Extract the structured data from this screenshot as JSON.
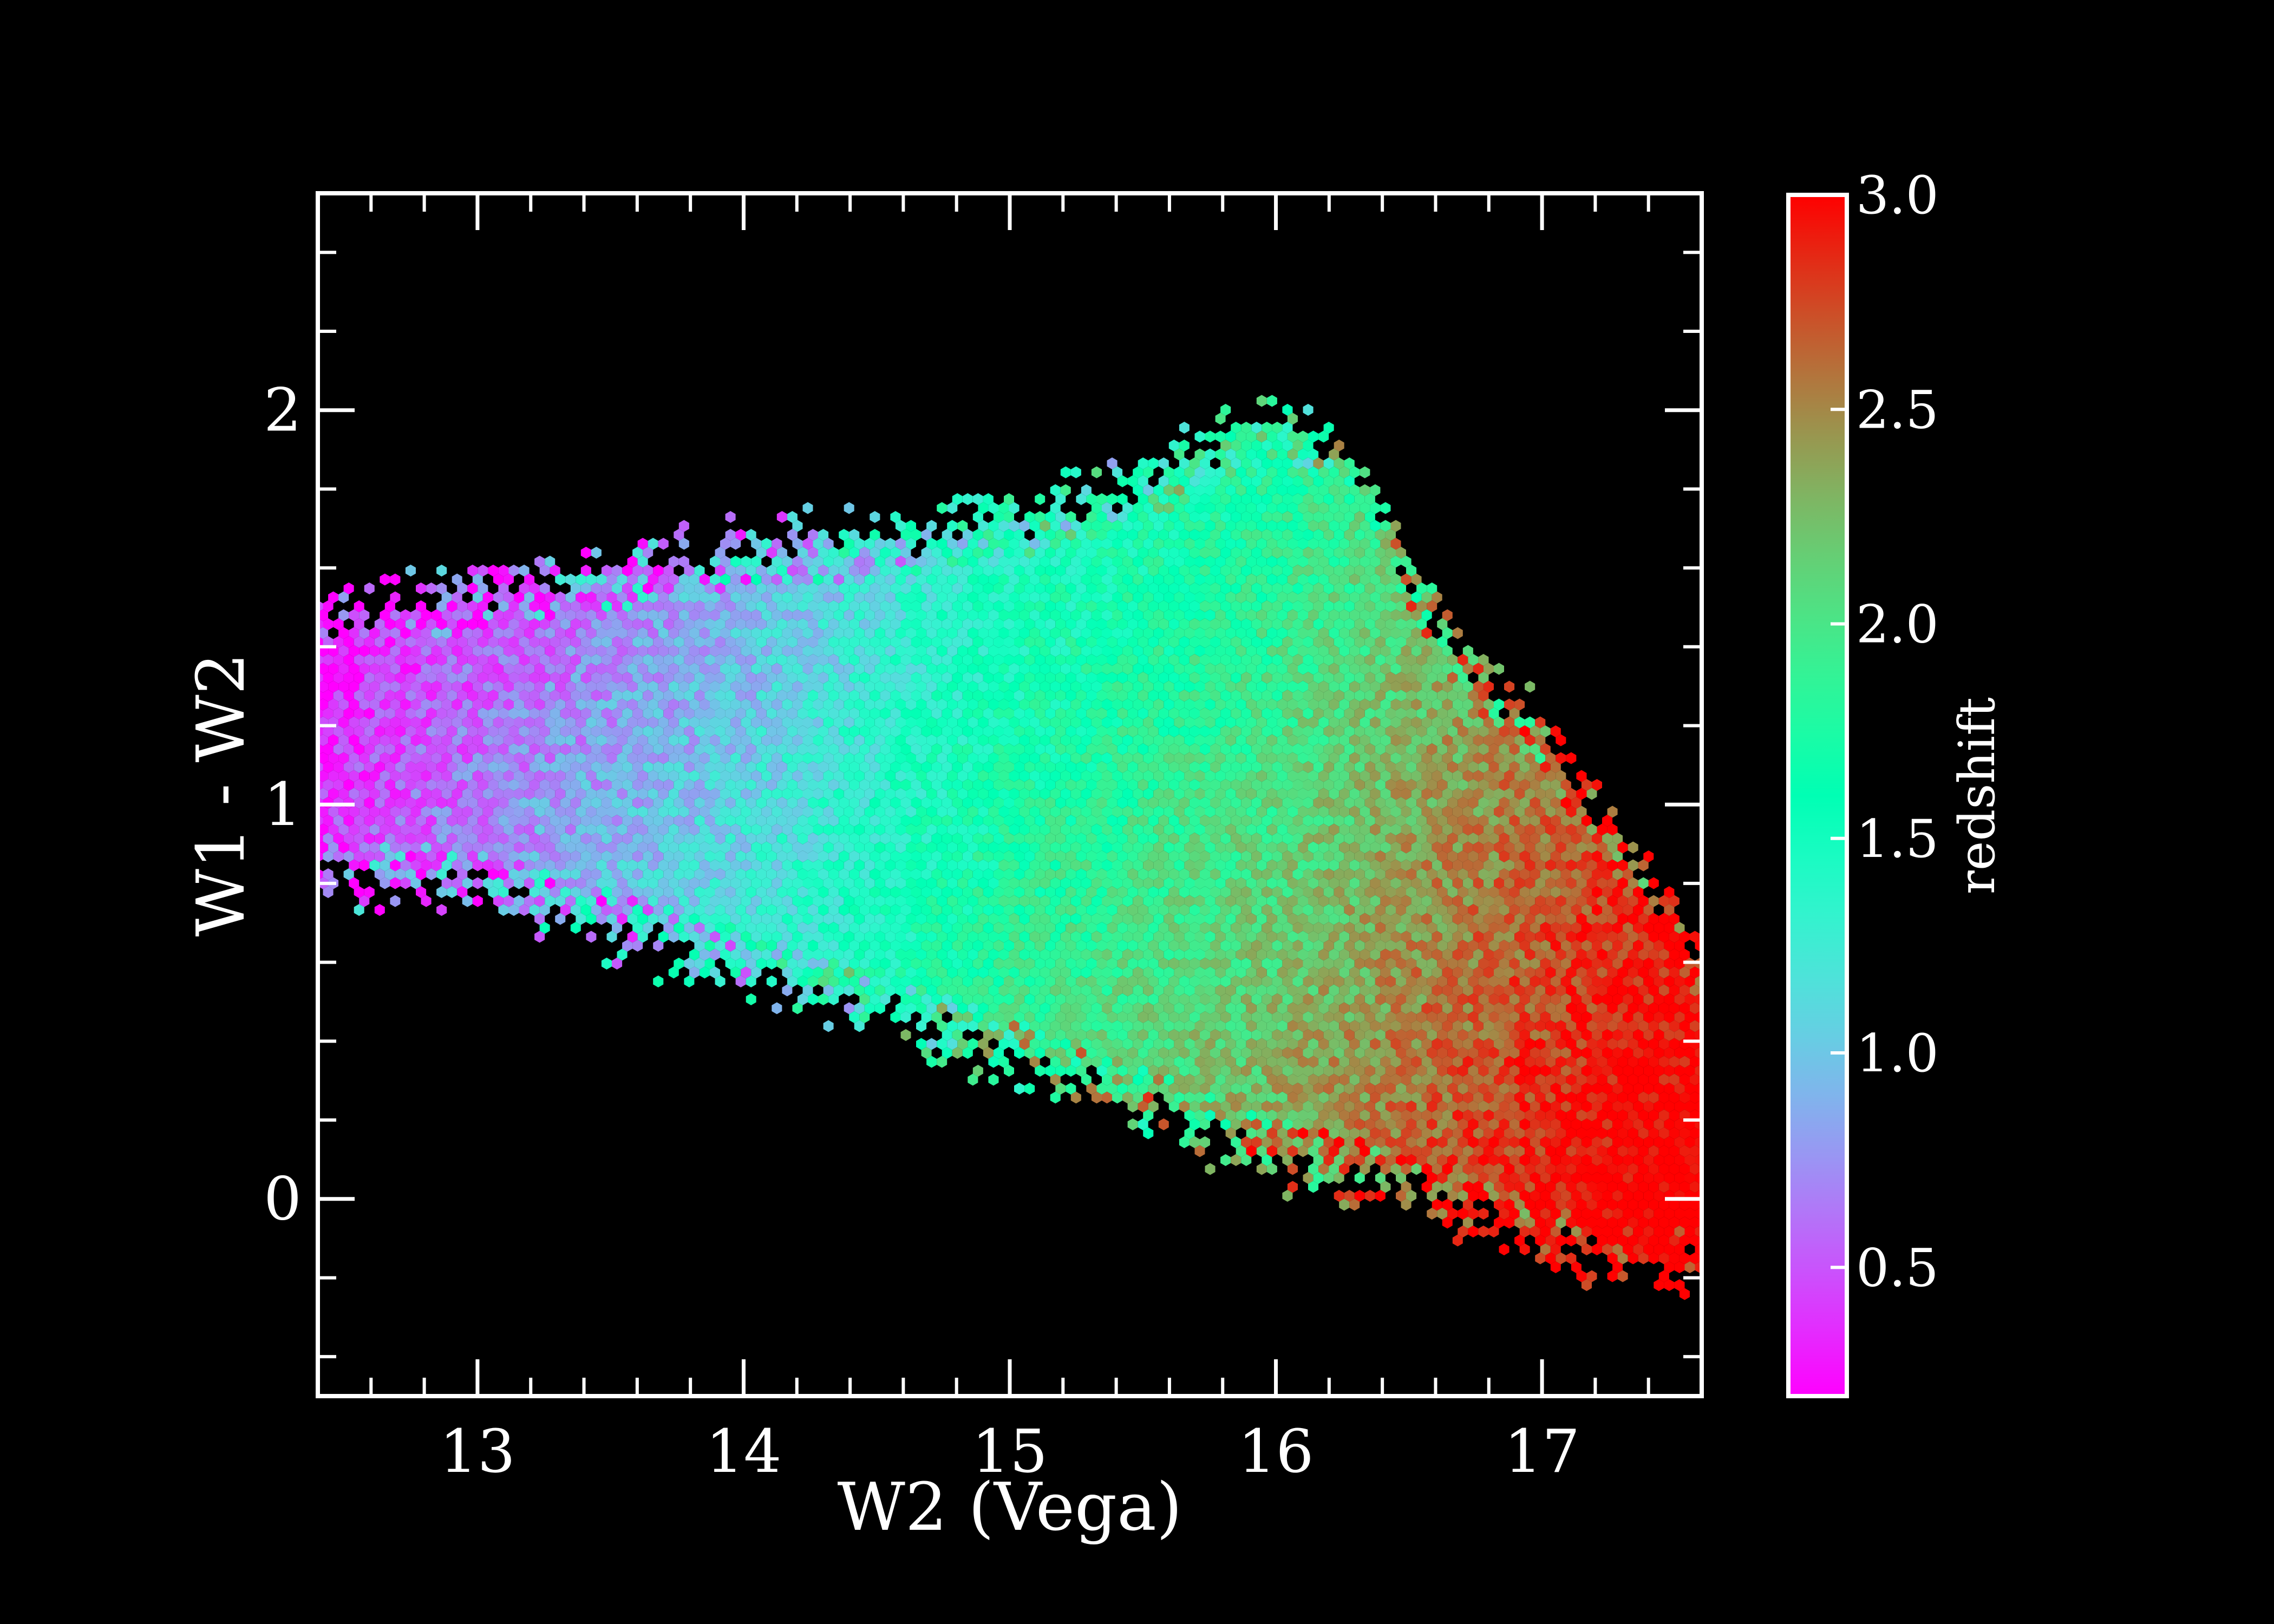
{
  "chart_data": {
    "type": "hexbin",
    "xlabel": "W2 (Vega)",
    "ylabel": "W1 - W2",
    "xlim": [
      12.4,
      17.6
    ],
    "ylim": [
      -0.5,
      2.55
    ],
    "x_ticks_major": [
      13,
      14,
      15,
      16,
      17
    ],
    "x_tick_labels": [
      "13",
      "14",
      "15",
      "16",
      "17"
    ],
    "x_ticks_minor_step": 0.2,
    "y_ticks_major": [
      0,
      1,
      2
    ],
    "y_tick_labels": [
      "0",
      "1",
      "2"
    ],
    "y_ticks_minor_step": 0.2,
    "background": "#000000",
    "colorbar": {
      "label": "redshift",
      "range": [
        0.2,
        3.0
      ],
      "ticks": [
        0.5,
        1.0,
        1.5,
        2.0,
        2.5,
        3.0
      ],
      "tick_labels": [
        "0.5",
        "1.0",
        "1.5",
        "2.0",
        "2.5",
        "3.0"
      ],
      "colormap": "rainbow",
      "placement": "right"
    },
    "distribution": {
      "upper_edge": [
        [
          12.4,
          1.47
        ],
        [
          13.0,
          1.55
        ],
        [
          14.0,
          1.64
        ],
        [
          15.0,
          1.72
        ],
        [
          15.5,
          1.82
        ],
        [
          16.0,
          1.98
        ],
        [
          16.3,
          1.88
        ],
        [
          16.6,
          1.45
        ],
        [
          17.0,
          1.18
        ],
        [
          17.6,
          0.6
        ]
      ],
      "lower_edge": [
        [
          12.4,
          0.82
        ],
        [
          13.0,
          0.78
        ],
        [
          14.0,
          0.58
        ],
        [
          15.0,
          0.36
        ],
        [
          16.0,
          0.1
        ],
        [
          16.5,
          0.02
        ],
        [
          17.0,
          -0.12
        ],
        [
          17.6,
          -0.18
        ]
      ],
      "redshift_trend": [
        [
          12.4,
          0.4
        ],
        [
          13.0,
          0.7
        ],
        [
          14.0,
          1.1
        ],
        [
          15.0,
          1.7
        ],
        [
          16.0,
          2.05
        ],
        [
          16.6,
          2.4
        ],
        [
          17.4,
          2.8
        ]
      ]
    }
  }
}
